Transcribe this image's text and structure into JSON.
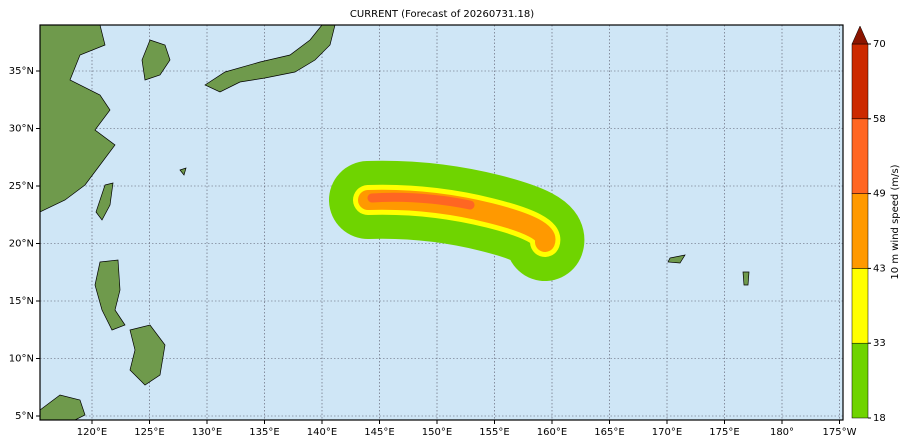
{
  "title": "CURRENT (Forecast of 20260731.18)",
  "map": {
    "lon_labels": [
      "120°E",
      "125°E",
      "130°E",
      "135°E",
      "140°E",
      "145°E",
      "150°E",
      "155°E",
      "160°E",
      "165°E",
      "170°E",
      "175°E",
      "180°",
      "175°W"
    ],
    "lat_labels": [
      "35°N",
      "30°N",
      "25°N",
      "20°N",
      "15°N",
      "10°N",
      "5°N"
    ]
  },
  "colorbar": {
    "label": "10 m wind speed (m/s)",
    "bounds": [
      18,
      33,
      43,
      49,
      58,
      70
    ],
    "colors": [
      "#6fd400",
      "#ffff00",
      "#ff9900",
      "#ff6622",
      "#cc2a00"
    ],
    "extend_color": "#8b1500"
  }
}
